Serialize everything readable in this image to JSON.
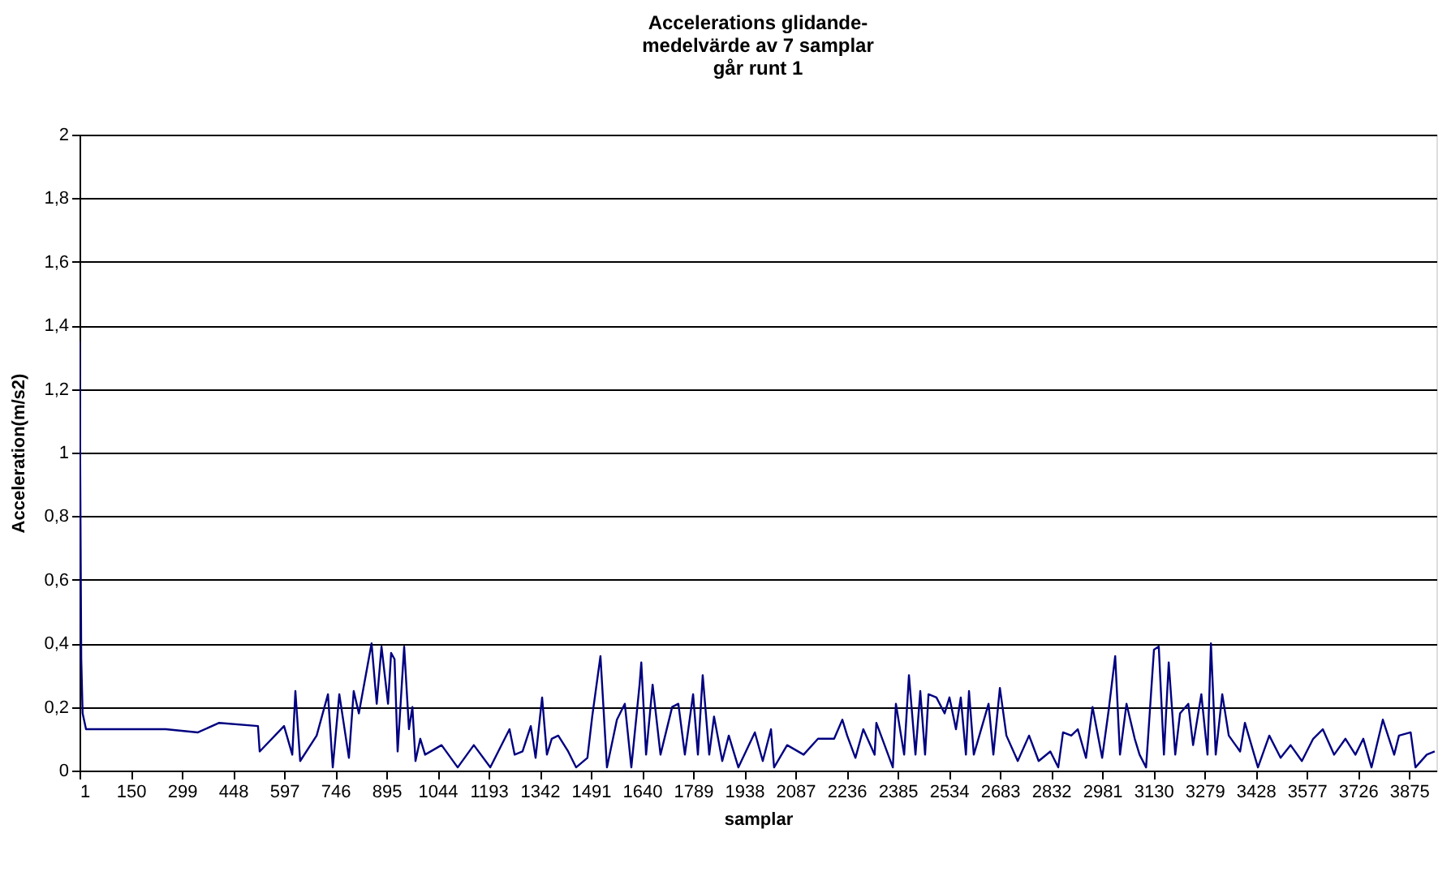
{
  "chart_data": {
    "type": "line",
    "title": "Accelerations glidande-\nmedelvärde av 7 samplar\ngår runt 1",
    "xlabel": "samplar",
    "ylabel": "Acceleration(m/s2)",
    "xlim": [
      1,
      3955
    ],
    "xticks": [
      1,
      150,
      299,
      448,
      597,
      746,
      895,
      1044,
      1193,
      1342,
      1491,
      1640,
      1789,
      1938,
      2087,
      2236,
      2385,
      2534,
      2683,
      2832,
      2981,
      3130,
      3279,
      3428,
      3577,
      3726,
      3875
    ],
    "ylim": [
      0,
      2
    ],
    "yticks": [
      0,
      {
        "value": 0.2,
        "label": "0,2"
      },
      {
        "value": 0.4,
        "label": "0,4"
      },
      {
        "value": 0.6,
        "label": "0,6"
      },
      {
        "value": 0.8,
        "label": "0,8"
      },
      1,
      {
        "value": 1.2,
        "label": "1,2"
      },
      {
        "value": 1.4,
        "label": "1,4"
      },
      {
        "value": 1.6,
        "label": "1,6"
      },
      {
        "value": 1.8,
        "label": "1,8"
      },
      2
    ],
    "grid": "y",
    "marker": "none",
    "line_style": "solid",
    "series": [
      {
        "color": "#000080",
        "x": [
          1,
          6,
          10,
          20,
          62,
          157,
          252,
          346,
          408,
          521,
          526,
          597,
          621,
          630,
          644,
          692,
          725,
          739,
          758,
          786,
          800,
          815,
          852,
          867,
          881,
          900,
          909,
          919,
          928,
          947,
          961,
          971,
          980,
          994,
          1008,
          1056,
          1103,
          1150,
          1198,
          1254,
          1269,
          1292,
          1316,
          1330,
          1349,
          1363,
          1377,
          1396,
          1425,
          1448,
          1481,
          1495,
          1519,
          1538,
          1567,
          1590,
          1609,
          1633,
          1638,
          1652,
          1671,
          1694,
          1728,
          1746,
          1765,
          1789,
          1803,
          1817,
          1836,
          1850,
          1874,
          1893,
          1921,
          1969,
          1992,
          2016,
          2025,
          2063,
          2111,
          2153,
          2200,
          2224,
          2238,
          2262,
          2285,
          2318,
          2323,
          2371,
          2380,
          2404,
          2418,
          2437,
          2451,
          2465,
          2475,
          2498,
          2522,
          2536,
          2555,
          2569,
          2584,
          2593,
          2607,
          2650,
          2664,
          2683,
          2702,
          2735,
          2768,
          2796,
          2830,
          2853,
          2867,
          2891,
          2910,
          2934,
          2953,
          2981,
          3000,
          3019,
          3033,
          3052,
          3076,
          3090,
          3109,
          3132,
          3146,
          3161,
          3175,
          3194,
          3208,
          3232,
          3246,
          3270,
          3288,
          3298,
          3312,
          3331,
          3350,
          3383,
          3397,
          3435,
          3468,
          3501,
          3530,
          3563,
          3596,
          3624,
          3657,
          3690,
          3719,
          3742,
          3766,
          3799,
          3832,
          3846,
          3880,
          3894,
          3927,
          3950
        ],
        "values": [
          1.35,
          0.35,
          0.18,
          0.13,
          0.13,
          0.13,
          0.13,
          0.12,
          0.15,
          0.14,
          0.06,
          0.14,
          0.05,
          0.25,
          0.03,
          0.11,
          0.24,
          0.01,
          0.24,
          0.04,
          0.25,
          0.18,
          0.4,
          0.21,
          0.39,
          0.21,
          0.37,
          0.35,
          0.06,
          0.39,
          0.13,
          0.2,
          0.03,
          0.1,
          0.05,
          0.08,
          0.01,
          0.08,
          0.01,
          0.13,
          0.05,
          0.06,
          0.14,
          0.04,
          0.23,
          0.05,
          0.1,
          0.11,
          0.06,
          0.01,
          0.04,
          0.17,
          0.36,
          0.01,
          0.16,
          0.21,
          0.01,
          0.27,
          0.34,
          0.05,
          0.27,
          0.05,
          0.2,
          0.21,
          0.05,
          0.24,
          0.05,
          0.3,
          0.05,
          0.17,
          0.03,
          0.11,
          0.01,
          0.12,
          0.03,
          0.13,
          0.01,
          0.08,
          0.05,
          0.1,
          0.1,
          0.16,
          0.11,
          0.04,
          0.13,
          0.05,
          0.15,
          0.01,
          0.21,
          0.05,
          0.3,
          0.05,
          0.25,
          0.05,
          0.24,
          0.23,
          0.18,
          0.23,
          0.13,
          0.23,
          0.05,
          0.25,
          0.05,
          0.21,
          0.05,
          0.26,
          0.11,
          0.03,
          0.11,
          0.03,
          0.06,
          0.01,
          0.12,
          0.11,
          0.13,
          0.04,
          0.2,
          0.04,
          0.19,
          0.36,
          0.05,
          0.21,
          0.1,
          0.05,
          0.01,
          0.38,
          0.39,
          0.05,
          0.34,
          0.05,
          0.18,
          0.21,
          0.08,
          0.24,
          0.05,
          0.4,
          0.05,
          0.24,
          0.11,
          0.06,
          0.15,
          0.01,
          0.11,
          0.04,
          0.08,
          0.03,
          0.1,
          0.13,
          0.05,
          0.1,
          0.05,
          0.1,
          0.01,
          0.16,
          0.05,
          0.11,
          0.12,
          0.01,
          0.05,
          0.06
        ]
      }
    ]
  }
}
